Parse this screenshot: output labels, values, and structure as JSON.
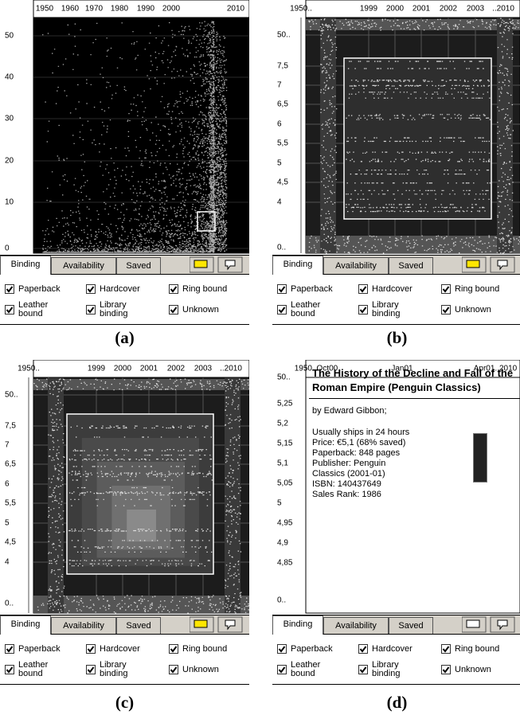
{
  "panels": [
    {
      "caption": "(a)",
      "x_labels": [
        "1950",
        "1960",
        "1970",
        "1980",
        "1990",
        "2000",
        "2010"
      ],
      "y_labels": [
        "50",
        "40",
        "30",
        "20",
        "10",
        "0"
      ],
      "tabs": [
        "Binding",
        "Availability",
        "Saved"
      ],
      "checkboxes": [
        [
          "Paperback"
        ],
        [
          "Hardcover"
        ],
        [
          "Ring bound"
        ],
        [
          "Leather",
          "bound"
        ],
        [
          "Library",
          "binding"
        ],
        [
          "Unknown"
        ]
      ]
    },
    {
      "caption": "(b)",
      "x_labels": [
        "1950..",
        "1999",
        "2000",
        "2001",
        "2002",
        "2003",
        "..2010"
      ],
      "y_labels": [
        "50..",
        "7,5",
        "7",
        "6,5",
        "6",
        "5,5",
        "5",
        "4,5",
        "4",
        "0.."
      ],
      "tabs": [
        "Binding",
        "Availability",
        "Saved"
      ],
      "checkboxes": [
        [
          "Paperback"
        ],
        [
          "Hardcover"
        ],
        [
          "Ring bound"
        ],
        [
          "Leather",
          "bound"
        ],
        [
          "Library",
          "binding"
        ],
        [
          "Unknown"
        ]
      ]
    },
    {
      "caption": "(c)",
      "x_labels": [
        "1950..",
        "1999",
        "2000",
        "2001",
        "2002",
        "2003",
        "..2010"
      ],
      "y_labels": [
        "50..",
        "7,5",
        "7",
        "6,5",
        "6",
        "5,5",
        "5",
        "4,5",
        "4",
        "0.."
      ],
      "tabs": [
        "Binding",
        "Availability",
        "Saved"
      ],
      "checkboxes": [
        [
          "Paperback"
        ],
        [
          "Hardcover"
        ],
        [
          "Ring bound"
        ],
        [
          "Leather",
          "bound"
        ],
        [
          "Library",
          "binding"
        ],
        [
          "Unknown"
        ]
      ]
    },
    {
      "caption": "(d)",
      "x_labels": [
        "1950..Oct00",
        "Jan01",
        "Apr01..2010"
      ],
      "y_labels": [
        "50..",
        "5,25",
        "5,2",
        "5,15",
        "5,1",
        "5,05",
        "5",
        "4,95",
        "4,9",
        "4,85",
        "0.."
      ],
      "tabs": [
        "Binding",
        "Availability",
        "Saved"
      ],
      "checkboxes": [
        [
          "Paperback"
        ],
        [
          "Hardcover"
        ],
        [
          "Ring bound"
        ],
        [
          "Leather",
          "bound"
        ],
        [
          "Library",
          "binding"
        ],
        [
          "Unknown"
        ]
      ],
      "book": {
        "title": "The History of the Decline and Fall of the Roman Empire (Penguin Classics)",
        "author": "by Edward Gibbon;",
        "details": [
          "Usually ships in 24 hours",
          "Price: €5,1 (68% saved)",
          "Paperback: 848 pages",
          "Publisher: Penguin",
          "Classics (2001-01)",
          "ISBN: 140437649",
          "Sales Rank: 1986"
        ]
      }
    }
  ]
}
